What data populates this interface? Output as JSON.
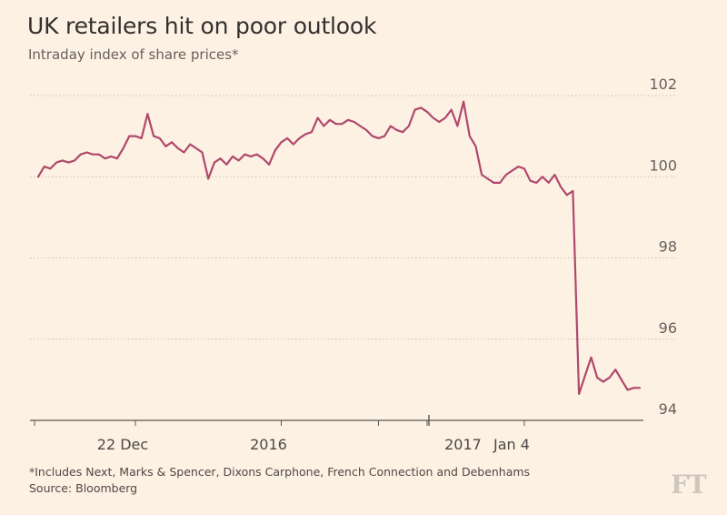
{
  "header": {
    "title": "UK retailers hit on poor outlook",
    "subtitle": "Intraday index of share prices*"
  },
  "footer": {
    "note": "*Includes Next, Marks & Spencer, Dixons Carphone, French Connection and Debenhams",
    "source": "Source: Bloomberg",
    "brand": "FT"
  },
  "colors": {
    "background": "#fdf1e4",
    "line": "#b0486b",
    "grid": "#c9c0b7",
    "axis": "#5a5550",
    "text": "#33302e"
  },
  "chart_data": {
    "type": "line",
    "title": "UK retailers hit on poor outlook",
    "subtitle": "Intraday index of share prices*",
    "ylim": [
      94,
      102
    ],
    "y_ticks": [
      94,
      96,
      98,
      100,
      102
    ],
    "y_axis_side": "right",
    "grid": "horizontal dotted",
    "x_tick_labels": [
      {
        "label": "22  Dec",
        "index": 16
      },
      {
        "label": "2016",
        "index": 40
      },
      {
        "label": "2017",
        "index": 72
      },
      {
        "label": "Jan  4",
        "index": 80
      }
    ],
    "x_minor_ticks": [
      0,
      16,
      40,
      56,
      64,
      80
    ],
    "x_major_ticks": [
      64
    ],
    "series": [
      {
        "values": [
          100.0,
          100.25,
          100.2,
          100.35,
          100.4,
          100.35,
          100.4,
          100.55,
          100.6,
          100.55,
          100.55,
          100.45,
          100.5,
          100.45,
          100.7,
          101.0,
          101.0,
          100.95,
          101.55,
          101.0,
          100.95,
          100.75,
          100.85,
          100.7,
          100.6,
          100.8,
          100.7,
          100.6,
          99.95,
          100.35,
          100.45,
          100.3,
          100.5,
          100.4,
          100.55,
          100.5,
          100.55,
          100.45,
          100.3,
          100.65,
          100.85,
          100.95,
          100.8,
          100.95,
          101.05,
          101.1,
          101.45,
          101.25,
          101.4,
          101.3,
          101.3,
          101.4,
          101.35,
          101.25,
          101.15,
          101.0,
          100.95,
          101.0,
          101.25,
          101.15,
          101.1,
          101.25,
          101.65,
          101.7,
          101.6,
          101.45,
          101.35,
          101.45,
          101.65,
          101.25,
          101.85,
          101.0,
          100.75,
          100.05,
          99.95,
          99.85,
          99.85,
          100.05,
          100.15,
          100.25,
          100.2,
          99.9,
          99.85,
          100.0,
          99.85,
          100.05,
          99.75,
          99.55,
          99.65,
          94.65,
          95.1,
          95.55,
          95.05,
          94.95,
          95.05,
          95.25,
          95.0,
          94.75,
          94.8,
          94.8
        ]
      }
    ]
  }
}
